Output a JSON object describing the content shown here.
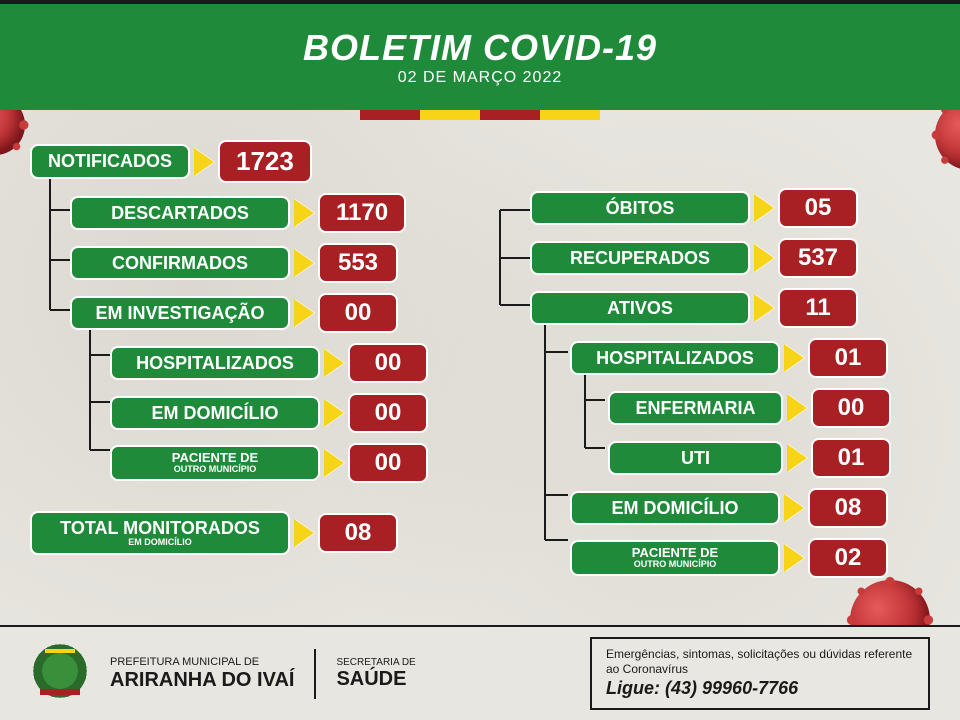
{
  "colors": {
    "green": "#1f8b3a",
    "red": "#a81f24",
    "yellow": "#f7d417",
    "bg": "#e8e6e0",
    "dark": "#1a1a1a",
    "white": "#ffffff"
  },
  "header": {
    "title": "BOLETIM COVID-19",
    "date": "02 DE MARÇO 2022"
  },
  "root": {
    "label": "NOTIFICADOS",
    "value": "1723"
  },
  "left": [
    {
      "label": "DESCARTADOS",
      "value": "1170",
      "indent": 1
    },
    {
      "label": "CONFIRMADOS",
      "value": "553",
      "indent": 1
    },
    {
      "label": "EM INVESTIGAÇÃO",
      "value": "00",
      "indent": 1
    },
    {
      "label": "HOSPITALIZADOS",
      "value": "00",
      "indent": 2
    },
    {
      "label": "EM DOMICÍLIO",
      "value": "00",
      "indent": 2
    },
    {
      "label": "PACIENTE DE",
      "sublabel": "OUTRO MUNICÍPIO",
      "value": "00",
      "indent": 2,
      "small": true
    }
  ],
  "right": [
    {
      "label": "ÓBITOS",
      "value": "05",
      "indent": 1
    },
    {
      "label": "RECUPERADOS",
      "value": "537",
      "indent": 1
    },
    {
      "label": "ATIVOS",
      "value": "11",
      "indent": 1
    },
    {
      "label": "HOSPITALIZADOS",
      "value": "01",
      "indent": 2
    },
    {
      "label": "ENFERMARIA",
      "value": "00",
      "indent": 3
    },
    {
      "label": "UTI",
      "value": "01",
      "indent": 3
    },
    {
      "label": "EM DOMICÍLIO",
      "value": "08",
      "indent": 2
    },
    {
      "label": "PACIENTE DE",
      "sublabel": "OUTRO MUNICÍPIO",
      "value": "02",
      "indent": 2,
      "small": true
    }
  ],
  "total": {
    "label": "TOTAL MONITORADOS",
    "sublabel": "EM DOMICÍLIO",
    "value": "08"
  },
  "footer": {
    "muni_top": "PREFEITURA MUNICIPAL DE",
    "muni_name": "ARIRANHA DO IVAÍ",
    "sec_top": "SECRETARIA DE",
    "sec_name": "SAÚDE",
    "contact_text": "Emergências, sintomas, solicitações ou dúvidas referente ao Coronavírus",
    "contact_cta": "Ligue:",
    "contact_phone": "(43) 99960-7766"
  }
}
